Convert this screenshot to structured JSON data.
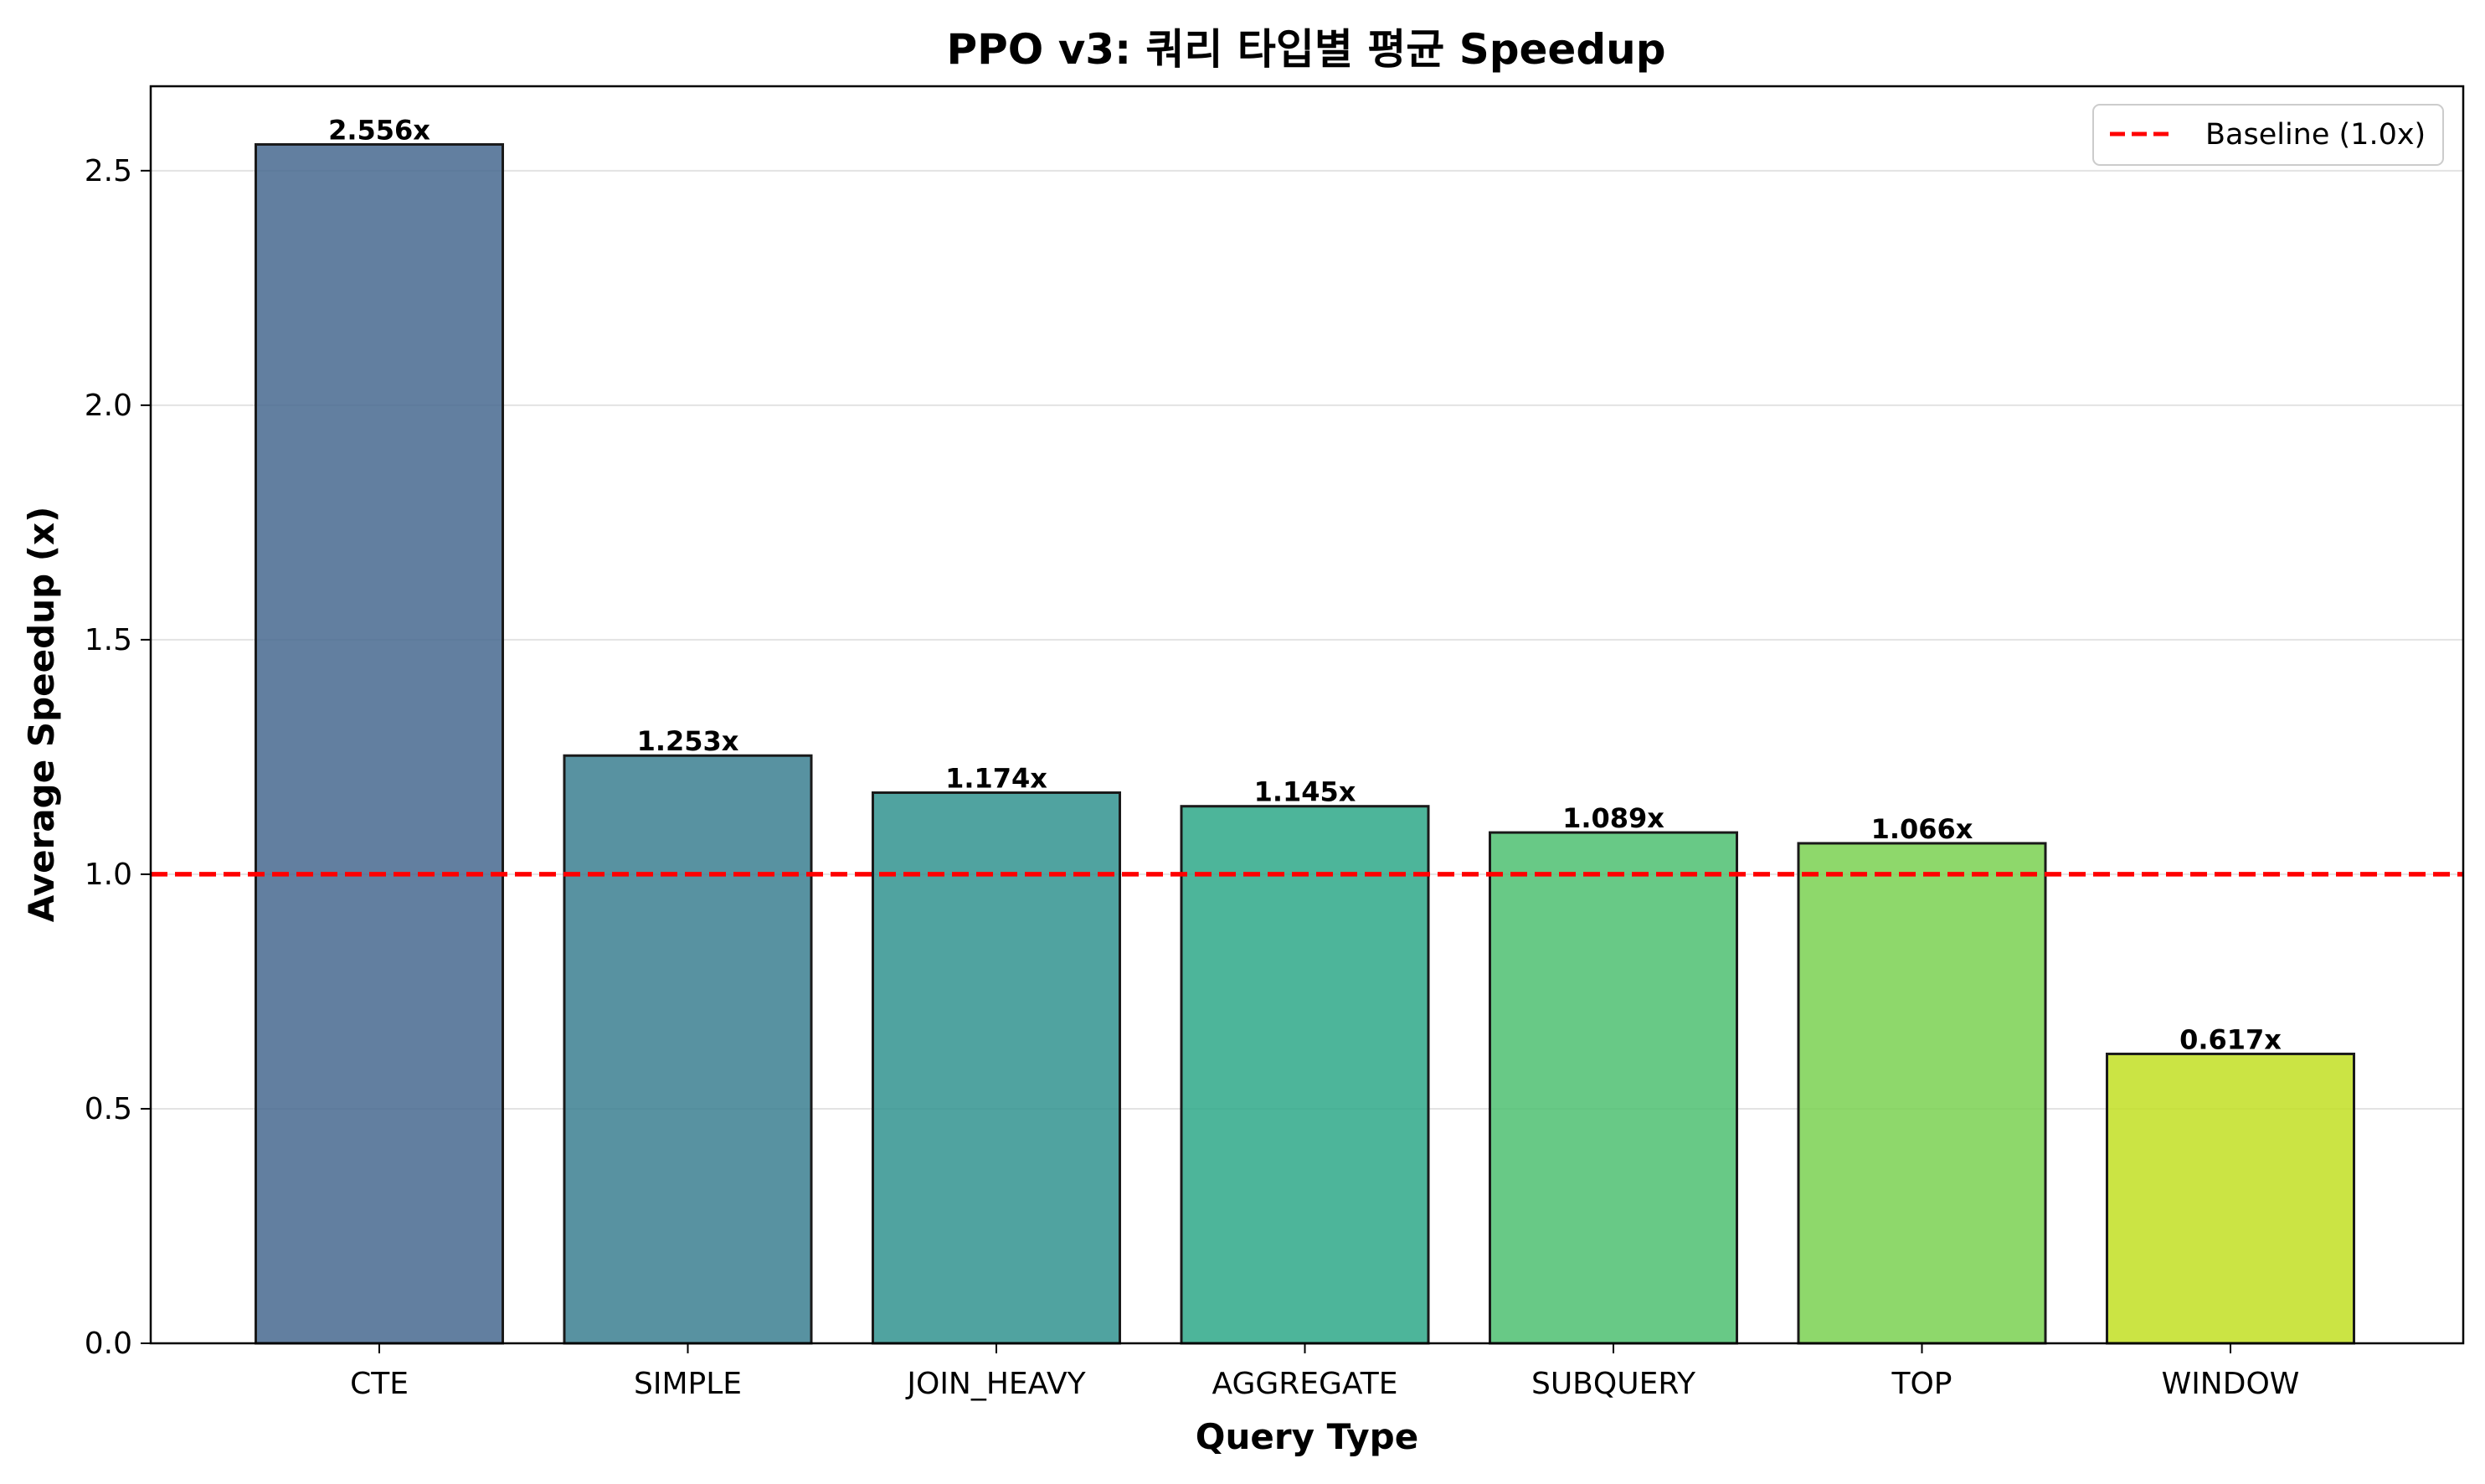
{
  "chart_data": {
    "type": "bar",
    "title": "PPO v3: 쿼리 타입별 평균 Speedup",
    "xlabel": "Query Type",
    "ylabel": "Average Speedup (x)",
    "categories": [
      "CTE",
      "SIMPLE",
      "JOIN_HEAVY",
      "AGGREGATE",
      "SUBQUERY",
      "TOP",
      "WINDOW"
    ],
    "values": [
      2.556,
      1.253,
      1.174,
      1.145,
      1.089,
      1.066,
      0.617
    ],
    "value_labels": [
      "2.556x",
      "1.253x",
      "1.174x",
      "1.145x",
      "1.089x",
      "1.066x",
      "0.617x"
    ],
    "bar_colors": [
      "#46688f",
      "#3b7f91",
      "#31938f",
      "#2ea888",
      "#4ec071",
      "#7ad151",
      "#c2df23"
    ],
    "bar_edge_color": "#1a1a1a",
    "ylim": [
      0,
      2.68
    ],
    "yticks": [
      0.0,
      0.5,
      1.0,
      1.5,
      2.0,
      2.5
    ],
    "ytick_labels": [
      "0.0",
      "0.5",
      "1.0",
      "1.5",
      "2.0",
      "2.5"
    ],
    "grid": "y",
    "baseline": {
      "value": 1.0,
      "label": "Baseline (1.0x)",
      "color": "#ff0000",
      "style": "dashed"
    },
    "legend_position": "top-right"
  }
}
